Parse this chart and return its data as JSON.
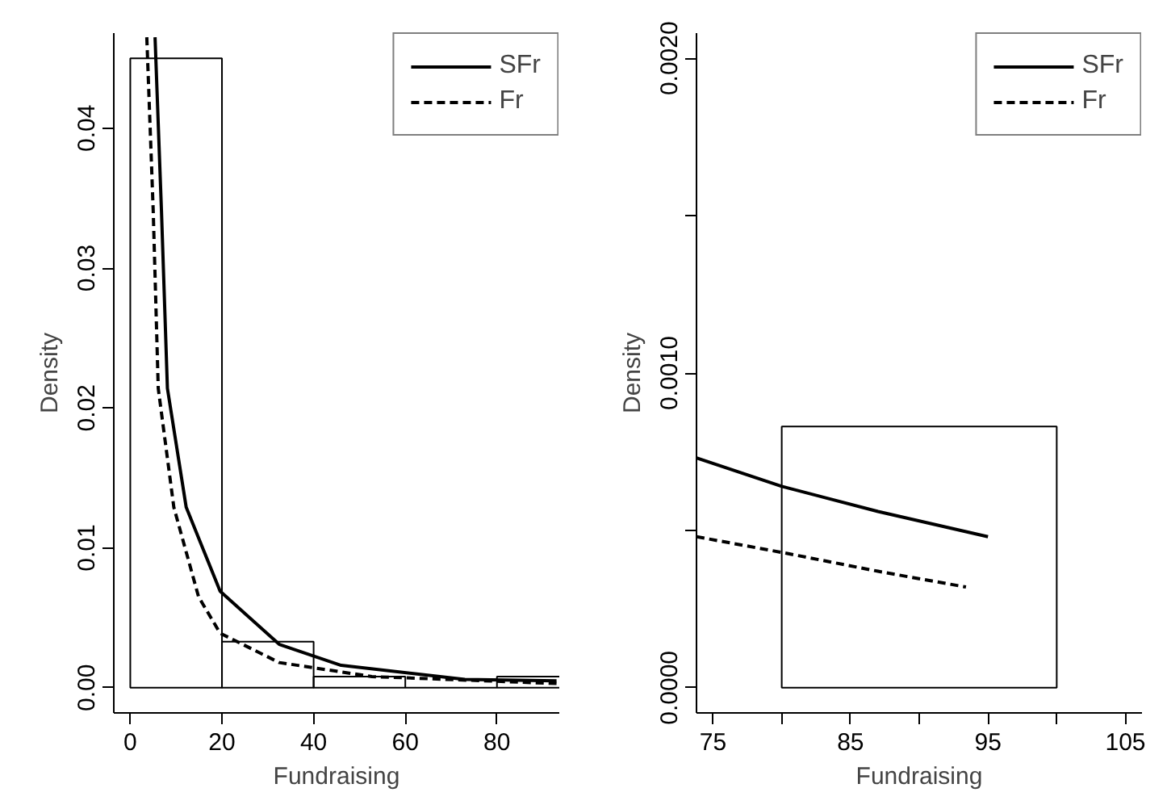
{
  "chart_data": [
    {
      "type": "histogram",
      "xlabel": "Fundraising",
      "ylabel": "Density",
      "bins": [
        0,
        20,
        40,
        60,
        80,
        100
      ],
      "values": [
        0.045,
        0.0033,
        0.0008,
        0,
        0.0008
      ],
      "color": "#000000",
      "xlim": [
        -3.6,
        93.6
      ],
      "ylim": [
        -0.0018,
        0.0468
      ],
      "xticks": [
        0,
        20,
        40,
        60,
        80
      ],
      "yticks": [
        {
          "value": 0,
          "label": "0.00"
        },
        0.01,
        0.02,
        0.03,
        0.04
      ],
      "legend": "top right",
      "series": [
        {
          "name": "SFr",
          "type": "line",
          "color": "#000000",
          "line_style": "solid",
          "x": [
            5.4,
            6.8,
            8.1,
            12.2,
            19.6,
            32.5,
            46,
            73,
            93
          ],
          "values": [
            0.0465,
            0.0341,
            0.0214,
            0.0129,
            0.0069,
            0.0031,
            0.0016,
            0.0006,
            0.0005
          ]
        },
        {
          "name": "Fr",
          "type": "line",
          "color": "#000000",
          "line_style": "dashed",
          "x": [
            3.6,
            5.0,
            6.1,
            9.5,
            14.9,
            19.6,
            32.5,
            52.7,
            93
          ],
          "values": [
            0.0465,
            0.0341,
            0.0214,
            0.0129,
            0.0065,
            0.0039,
            0.0018,
            0.0008,
            0.0003
          ]
        }
      ]
    },
    {
      "type": "histogram",
      "xlabel": "Fundraising",
      "ylabel": "Density",
      "bins": [
        80,
        100
      ],
      "values": [
        0.00083
      ],
      "color": "#000000",
      "xlim": [
        73.8,
        106.2
      ],
      "ylim": [
        -8e-05,
        0.00208
      ],
      "xticks": [
        75,
        {
          "value": 80,
          "label": null
        },
        85,
        {
          "value": 90,
          "label": null
        },
        95,
        {
          "value": 100,
          "label": null
        },
        105
      ],
      "yticks": [
        {
          "value": 0,
          "label": "0.0000"
        },
        {
          "value": 0.0005,
          "label": null
        },
        {
          "value": 0.001,
          "label": "0.0010"
        },
        {
          "value": 0.0015,
          "label": null
        },
        {
          "value": 0.002,
          "label": "0.0020"
        }
      ],
      "legend": "top right",
      "series": [
        {
          "name": "SFr",
          "type": "line",
          "color": "#000000",
          "line_style": "solid",
          "x": [
            73.8,
            80,
            87,
            95
          ],
          "values": [
            0.00073,
            0.00064,
            0.00056,
            0.00048
          ]
        },
        {
          "name": "Fr",
          "type": "line",
          "color": "#000000",
          "line_style": "dashed",
          "x": [
            73.8,
            80,
            87,
            93.4
          ],
          "values": [
            0.00048,
            0.00043,
            0.00037,
            0.00032
          ]
        }
      ]
    }
  ]
}
